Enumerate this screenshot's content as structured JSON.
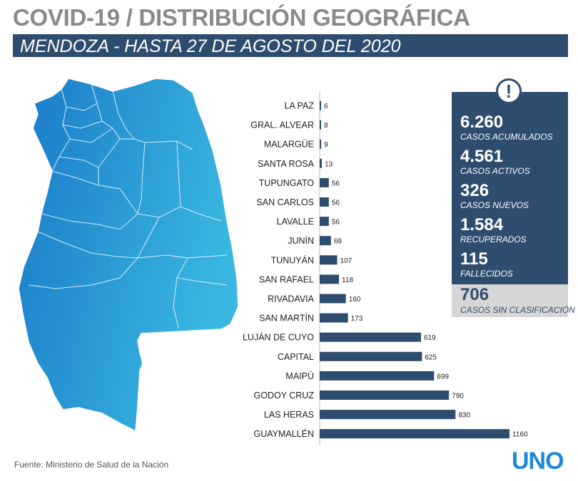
{
  "header": {
    "title": "COVID-19 / DISTRIBUCIÓN GEOGRÁFICA",
    "subtitle": "MENDOZA - HASTA 27 DE AGOSTO DEL 2020"
  },
  "chart_data": {
    "type": "bar",
    "orientation": "horizontal",
    "categories": [
      "LA PAZ",
      "GRAL. ALVEAR",
      "MALARGÜE",
      "SANTA ROSA",
      "TUPUNGATO",
      "SAN CARLOS",
      "LAVALLE",
      "JUNÍN",
      "TUNUYÁN",
      "SAN RAFAEL",
      "RIVADAVIA",
      "SAN MARTÍN",
      "LUJÁN DE CUYO",
      "CAPITAL",
      "MAIPÚ",
      "GODOY CRUZ",
      "LAS HERAS",
      "GUAYMALLÉN"
    ],
    "values": [
      6,
      8,
      9,
      13,
      56,
      56,
      56,
      69,
      107,
      118,
      160,
      173,
      619,
      625,
      699,
      790,
      830,
      1160
    ],
    "xlim": [
      0,
      1160
    ],
    "grid": false,
    "bar_color": "#2e4d6e"
  },
  "stats": {
    "alert_icon": "!",
    "items": [
      {
        "value": "6.260",
        "label": "CASOS ACUMULADOS"
      },
      {
        "value": "4.561",
        "label": "CASOS ACTIVOS"
      },
      {
        "value": "326",
        "label": "CASOS NUEVOS"
      },
      {
        "value": "1.584",
        "label": "RECUPERADOS"
      },
      {
        "value": "115",
        "label": "FALLECIDOS"
      }
    ],
    "unclassified": {
      "value": "706",
      "label": "CASOS SIN CLASIFICACIÓN"
    }
  },
  "footer": {
    "source": "Fuente: Ministerio de Salud de la Nación",
    "logo": "UNO"
  },
  "colors": {
    "primary": "#2e4d6e",
    "map_light": "#39b7e0",
    "map_dark": "#1a7ac8",
    "logo": "#1e8ad6"
  }
}
